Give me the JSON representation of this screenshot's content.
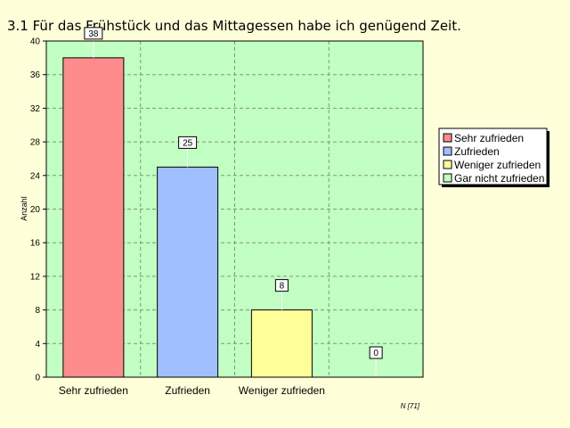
{
  "chart_data": {
    "type": "bar",
    "title": "3.1  Für das Frühstück und das Mittagessen habe ich genügend Zeit.",
    "xlabel": "",
    "ylabel": "Anzahl",
    "categories": [
      "Sehr zufrieden",
      "Zufrieden",
      "Weniger zufrieden",
      ""
    ],
    "values": [
      38,
      25,
      8,
      0
    ],
    "data_labels": [
      "38",
      "25",
      "8",
      "0"
    ],
    "ylim": [
      0,
      40
    ],
    "yticks": [
      0,
      4,
      8,
      12,
      16,
      20,
      24,
      28,
      32,
      36,
      40
    ],
    "grid": true,
    "legend_position": "right",
    "legend": [
      "Sehr zufrieden",
      "Zufrieden",
      "Weniger zufrieden",
      "Gar nicht zufrieden"
    ],
    "footnote": "N [71]",
    "colors": {
      "page_background": "#ffffd9",
      "plot_background": "#c2ffc2",
      "gridline": "#7a9a7a",
      "series": [
        "#ff8c8c",
        "#a0bfff",
        "#ffff99",
        "#c2ffc2"
      ]
    }
  }
}
